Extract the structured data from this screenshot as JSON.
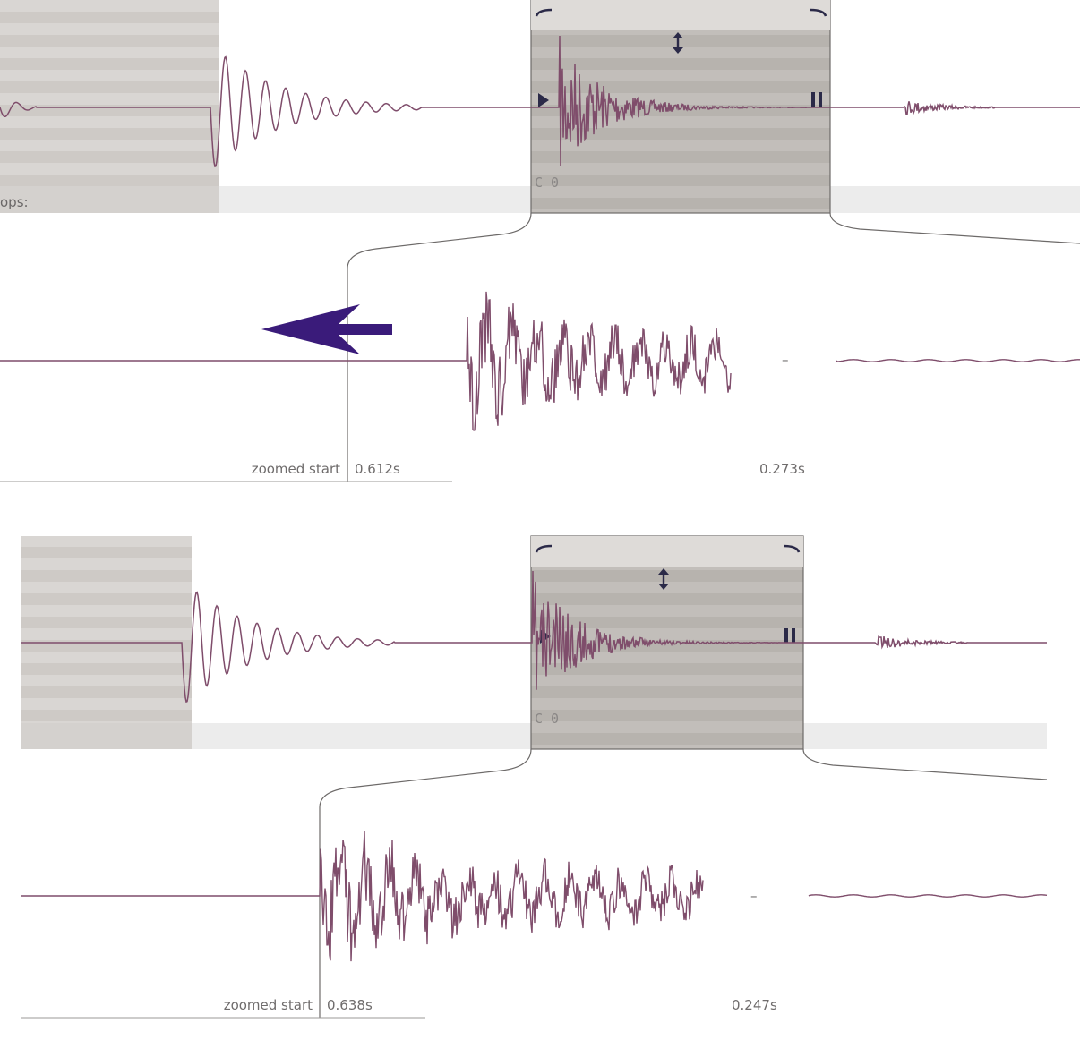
{
  "panels": [
    {
      "id": "before",
      "sidebar_label": "ops:",
      "selection_note": "C 0",
      "zoomed_start_label": "zoomed start",
      "zoomed_start_value": "0.612s",
      "zoomed_end_value": "0.273s",
      "separator_glyph": "–"
    },
    {
      "id": "after",
      "sidebar_label": "",
      "selection_note": "C 0",
      "zoomed_start_label": "zoomed start",
      "zoomed_start_value": "0.638s",
      "zoomed_end_value": "0.247s",
      "separator_glyph": "–"
    }
  ],
  "icons": {
    "play": "play-marker-icon",
    "pause": "loop-end-marker-icon",
    "resize": "vertical-resize-icon",
    "arrow": "left-arrow-annotation-icon"
  },
  "colors": {
    "waveform": "#7f4d6b",
    "waveform_highlight": "#8f9ad8",
    "selection": "#bdb9b5",
    "stripe_a": "#d7d4d1",
    "stripe_b": "#cbc7c3",
    "region_bar": "#ececec",
    "arrow": "#3a1b7a",
    "frame": "#6d6a69"
  }
}
